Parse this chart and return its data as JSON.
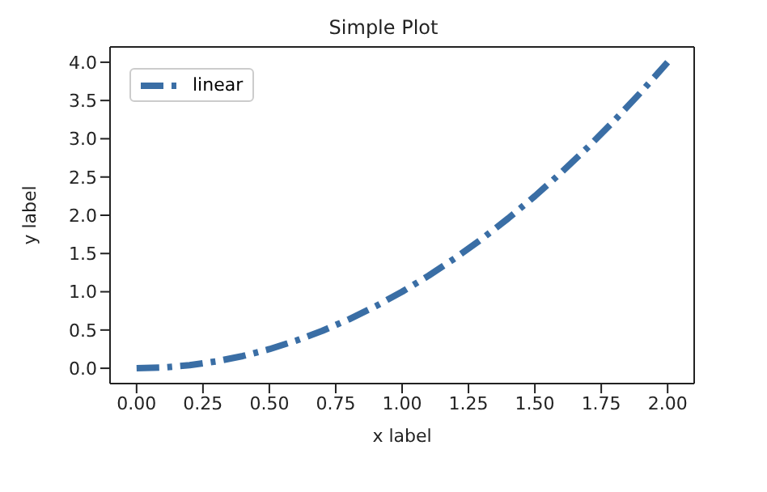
{
  "chart_data": {
    "type": "line",
    "title": "Simple Plot",
    "xlabel": "x label",
    "ylabel": "y label",
    "x": [
      0,
      0.1,
      0.2,
      0.3,
      0.4,
      0.5,
      0.6,
      0.7,
      0.8,
      0.9,
      1.0,
      1.1,
      1.2,
      1.3,
      1.4,
      1.5,
      1.6,
      1.7,
      1.8,
      1.9,
      2.0
    ],
    "series": [
      {
        "name": "linear",
        "color": "#3a6ea5",
        "values": [
          0,
          0.01,
          0.04,
          0.09,
          0.16,
          0.25,
          0.36,
          0.49,
          0.64,
          0.81,
          1.0,
          1.21,
          1.44,
          1.69,
          1.96,
          2.25,
          2.56,
          2.89,
          3.24,
          3.61,
          4.0
        ]
      }
    ],
    "xlim": [
      -0.1,
      2.1
    ],
    "ylim": [
      -0.2,
      4.2
    ],
    "xticks": [
      {
        "value": 0,
        "label": "0.00"
      },
      {
        "value": 0.25,
        "label": "0.25"
      },
      {
        "value": 0.5,
        "label": "0.50"
      },
      {
        "value": 0.75,
        "label": "0.75"
      },
      {
        "value": 1,
        "label": "1.00"
      },
      {
        "value": 1.25,
        "label": "1.25"
      },
      {
        "value": 1.5,
        "label": "1.50"
      },
      {
        "value": 1.75,
        "label": "1.75"
      },
      {
        "value": 2,
        "label": "2.00"
      }
    ],
    "yticks": [
      {
        "value": 0,
        "label": "0.0"
      },
      {
        "value": 0.5,
        "label": "0.5"
      },
      {
        "value": 1,
        "label": "1.0"
      },
      {
        "value": 1.5,
        "label": "1.5"
      },
      {
        "value": 2,
        "label": "2.0"
      },
      {
        "value": 2.5,
        "label": "2.5"
      },
      {
        "value": 3,
        "label": "3.0"
      },
      {
        "value": 3.5,
        "label": "3.5"
      },
      {
        "value": 4,
        "label": "4.0"
      }
    ],
    "grid": false,
    "legend": "top left",
    "marker": "none",
    "line_style": "dashed"
  }
}
